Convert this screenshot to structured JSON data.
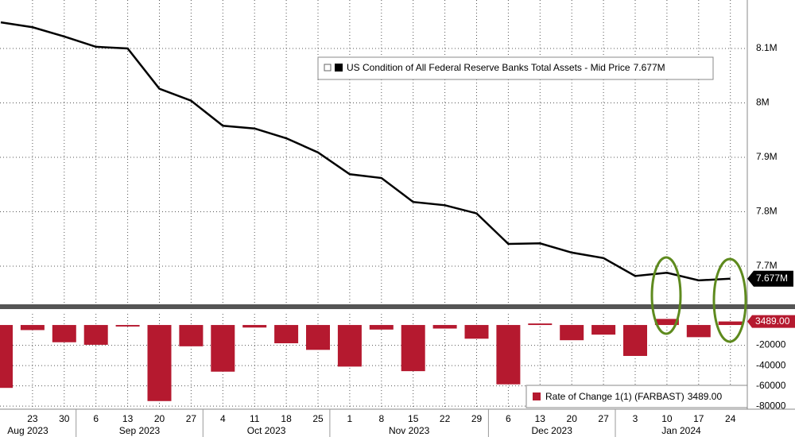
{
  "chart_data": [
    {
      "type": "line",
      "series": [
        {
          "name": "US Condition of All Federal Reserve Banks Total Assets - Mid Price",
          "color": "#000000",
          "values": [
            8.148,
            8.139,
            8.122,
            8.103,
            8.1,
            8.026,
            8.004,
            7.958,
            7.953,
            7.935,
            7.909,
            7.869,
            7.862,
            7.818,
            7.812,
            7.797,
            7.741,
            7.742,
            7.725,
            7.715,
            7.682,
            7.688,
            7.674,
            7.677
          ],
          "value_labels": [
            null,
            null,
            null,
            null,
            null,
            null,
            null,
            null,
            null,
            null,
            null,
            null,
            null,
            null,
            null,
            null,
            null,
            null,
            null,
            null,
            null,
            null,
            null,
            "7.677M"
          ]
        }
      ],
      "ylim": [
        7.63,
        8.189
      ],
      "yticks": [
        {
          "value": 7.7,
          "label": "7.7M"
        },
        {
          "value": 7.8,
          "label": "7.8M"
        },
        {
          "value": 7.9,
          "label": "7.9M"
        },
        {
          "value": 8,
          "label": "8M"
        },
        {
          "value": 8.1,
          "label": "8.1M"
        }
      ],
      "grid": true
    },
    {
      "type": "bar",
      "categories": [
        null,
        "23",
        "30",
        "6",
        "13",
        "20",
        "27",
        "4",
        "11",
        "18",
        "25",
        "1",
        "8",
        "15",
        "22",
        "29",
        "6",
        "13",
        "20",
        "27",
        "3",
        "10",
        "17",
        "24"
      ],
      "x_groups": [
        "Aug 2023",
        "Sep 2023",
        "Oct 2023",
        "Nov 2023",
        "Dec 2023",
        "Jan 2024"
      ],
      "series": [
        {
          "name": "Rate of Change 1(1) (FARBAST)",
          "color": "#b5192f",
          "values": [
            -62000,
            -5000,
            -17000,
            -19500,
            -1500,
            -75000,
            -21000,
            -46000,
            -2500,
            -18000,
            -24500,
            -41000,
            -4500,
            -45500,
            -3500,
            -13500,
            -58500,
            1500,
            -15000,
            -9500,
            -30500,
            6000,
            -12000,
            3489
          ],
          "value_labels": [
            null,
            null,
            null,
            null,
            null,
            null,
            null,
            null,
            null,
            null,
            null,
            null,
            null,
            null,
            null,
            null,
            null,
            null,
            null,
            null,
            null,
            null,
            null,
            "3489.00"
          ]
        }
      ],
      "ylim": [
        -83000,
        11000
      ],
      "yticks": [
        -80000,
        -60000,
        -40000,
        -20000
      ],
      "grid": true
    }
  ]
}
